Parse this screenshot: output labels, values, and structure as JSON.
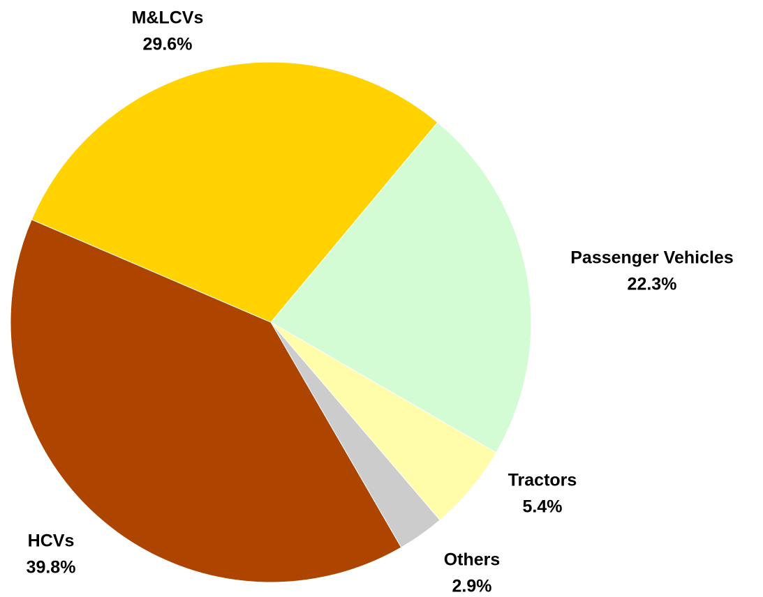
{
  "chart_data": {
    "type": "pie",
    "categories": [
      "Passenger Vehicles",
      "Tractors",
      "Others",
      "HCVs",
      "M&LCVs"
    ],
    "values": [
      22.3,
      5.4,
      2.9,
      39.8,
      29.6
    ],
    "value_labels": [
      "22.3%",
      "5.4%",
      "2.9%",
      "39.8%",
      "29.6%"
    ],
    "colors": [
      "#d4fcd4",
      "#fffcaa",
      "#cccccc",
      "#ad4500",
      "#ffd200"
    ]
  }
}
